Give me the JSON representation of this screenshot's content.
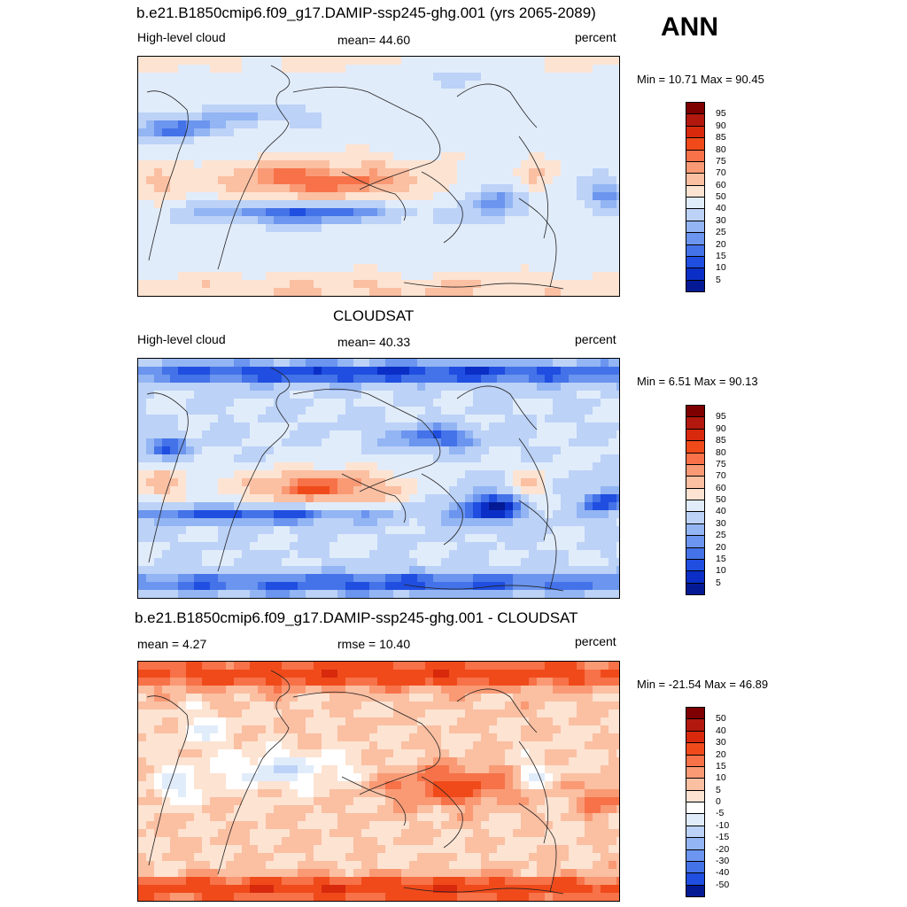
{
  "season": "ANN",
  "panels": [
    {
      "title": "b.e21.B1850cmip6.f09_g17.DAMIP-ssp245-ghg.001 (yrs 2065-2089)",
      "left_label": "High-level cloud",
      "center_label": "mean=  44.60",
      "right_label": "percent",
      "minmax": "Min =  10.71 Max =  90.45",
      "field": "model"
    },
    {
      "title": "CLOUDSAT",
      "left_label": "High-level cloud",
      "center_label": "mean=  40.33",
      "right_label": "percent",
      "minmax": "Min =   6.51 Max =  90.13",
      "field": "obs"
    },
    {
      "title": "b.e21.B1850cmip6.f09_g17.DAMIP-ssp245-ghg.001 - CLOUDSAT",
      "left_label": "mean =   4.27",
      "center_label": "rmse =  10.40",
      "right_label": "percent",
      "minmax": "Min = -21.54 Max =  46.89",
      "field": "diff"
    }
  ],
  "colorbars": {
    "cloud": {
      "labels": [
        "95",
        "90",
        "85",
        "80",
        "75",
        "70",
        "60",
        "50",
        "40",
        "30",
        "25",
        "20",
        "15",
        "10",
        "5"
      ],
      "colors": [
        "#7f0000",
        "#b2180e",
        "#d8290c",
        "#f04a1a",
        "#f77248",
        "#f99a75",
        "#fbbfa2",
        "#fde3d2",
        "#e1ecfb",
        "#bcd2f7",
        "#93b5f3",
        "#6b95ee",
        "#4472e8",
        "#1f4ee0",
        "#0b2fc6",
        "#041a94"
      ]
    },
    "diff": {
      "labels": [
        "50",
        "40",
        "30",
        "20",
        "15",
        "10",
        "5",
        "0",
        "-5",
        "-10",
        "-15",
        "-20",
        "-30",
        "-40",
        "-50"
      ],
      "colors": [
        "#7f0000",
        "#b2180e",
        "#d8290c",
        "#f04a1a",
        "#f77248",
        "#f99a75",
        "#fbbfa2",
        "#fde3d2",
        "#ffffff",
        "#e1ecfb",
        "#bcd2f7",
        "#93b5f3",
        "#6b95ee",
        "#4472e8",
        "#1f4ee0",
        "#041a94"
      ]
    }
  }
}
